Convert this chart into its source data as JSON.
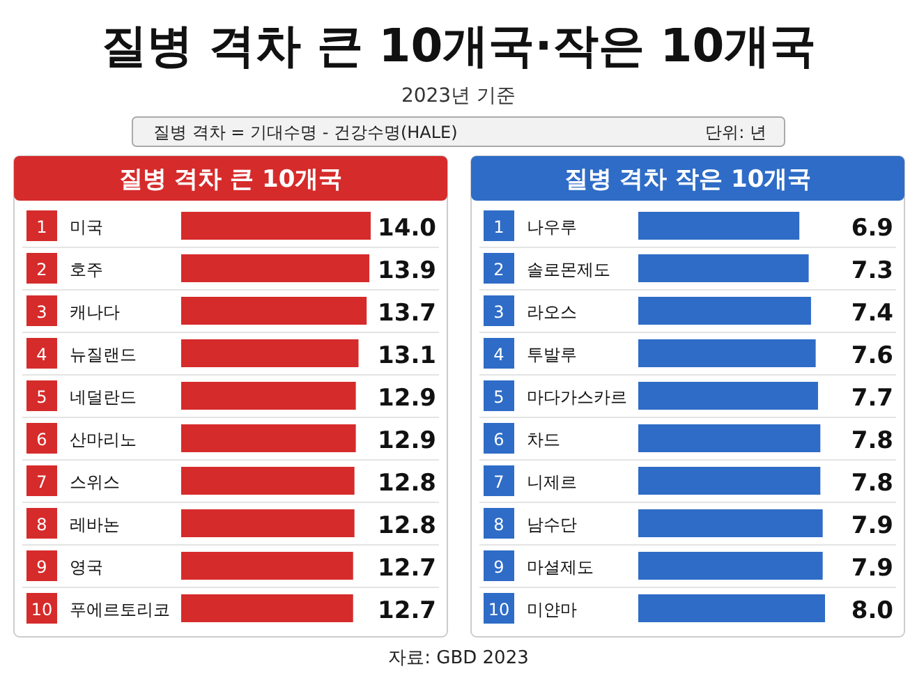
{
  "chart_data": [
    {
      "type": "other",
      "title": "질병 격차 큰 10개국·작은 10개국",
      "subtitle": "2023년 기준",
      "annotations": [
        "질병 격차 = 기대수명 - 건강수명(HALE)",
        "단위: 년",
        "자료: GBD 2023"
      ]
    },
    {
      "type": "bar",
      "orientation": "horizontal",
      "title": "질병 격차 큰 10개국",
      "color": "#d62b2b",
      "categories": [
        "미국",
        "호주",
        "캐나다",
        "뉴질랜드",
        "네덜란드",
        "산마리노",
        "스위스",
        "레바논",
        "영국",
        "푸에르토리코"
      ],
      "annotations": [
        "1",
        "2",
        "3",
        "4",
        "5",
        "6",
        "7",
        "8",
        "9",
        "10"
      ],
      "values": [
        14.0,
        13.9,
        13.7,
        13.1,
        12.9,
        12.9,
        12.8,
        12.8,
        12.7,
        12.7
      ],
      "value_labels": [
        "14.0",
        "13.9",
        "13.7",
        "13.1",
        "12.9",
        "12.9",
        "12.8",
        "12.8",
        "12.7",
        "12.7"
      ]
    },
    {
      "type": "bar",
      "orientation": "horizontal",
      "title": "질병 격차 작은 10개국",
      "color": "#2e6cc7",
      "categories": [
        "나우루",
        "솔로몬제도",
        "라오스",
        "투발루",
        "마다가스카르",
        "차드",
        "니제르",
        "남수단",
        "마셜제도",
        "미얀마"
      ],
      "annotations": [
        "1",
        "2",
        "3",
        "4",
        "5",
        "6",
        "7",
        "8",
        "9",
        "10"
      ],
      "values": [
        6.9,
        7.3,
        7.4,
        7.6,
        7.7,
        7.8,
        7.8,
        7.9,
        7.9,
        8.0
      ],
      "value_labels": [
        "6.9",
        "7.3",
        "7.4",
        "7.6",
        "7.7",
        "7.8",
        "7.8",
        "7.9",
        "7.9",
        "8.0"
      ]
    }
  ]
}
